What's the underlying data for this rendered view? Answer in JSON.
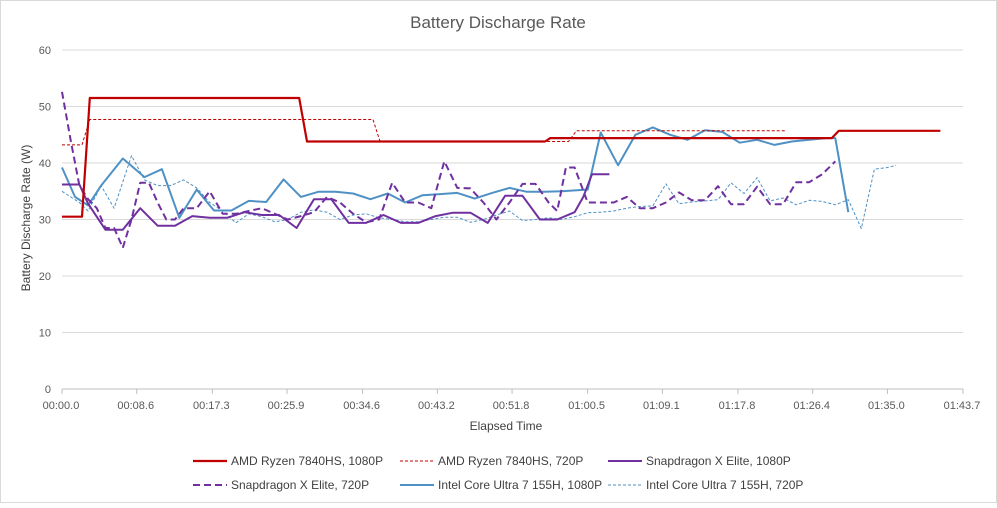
{
  "chart_data": {
    "type": "line",
    "title": "Battery Discharge Rate",
    "xlabel": "Elapsed Time",
    "ylabel": "Battery Discharge Rate (W)",
    "xlim": [
      0,
      101
    ],
    "ylim": [
      0,
      60
    ],
    "y_ticks": [
      0,
      10,
      20,
      30,
      40,
      50,
      60
    ],
    "x_ticks": [
      {
        "value": 0,
        "label": "00:00.0"
      },
      {
        "value": 8.6,
        "label": "00:08.6"
      },
      {
        "value": 17.3,
        "label": "00:17.3"
      },
      {
        "value": 25.9,
        "label": "00:25.9"
      },
      {
        "value": 34.6,
        "label": "00:34.6"
      },
      {
        "value": 43.2,
        "label": "00:43.2"
      },
      {
        "value": 51.8,
        "label": "00:51.8"
      },
      {
        "value": 60.5,
        "label": "01:00.5"
      },
      {
        "value": 69.1,
        "label": "01:09.1"
      },
      {
        "value": 77.8,
        "label": "01:17.8"
      },
      {
        "value": 86.4,
        "label": "01:26.4"
      },
      {
        "value": 95.0,
        "label": "01:35.0"
      },
      {
        "value": 103.7,
        "label": "01:43.7"
      }
    ],
    "grid": "horizontal",
    "legend_position": "bottom",
    "series": [
      {
        "name": "AMD Ryzen 7840HS, 1080P",
        "color": "#c00000",
        "dash": "solid",
        "width": 2.2,
        "points": [
          [
            0,
            30.5
          ],
          [
            2.3,
            30.5
          ],
          [
            3.2,
            51.5
          ],
          [
            27.3,
            51.5
          ],
          [
            28.2,
            43.8
          ],
          [
            55.6,
            43.8
          ],
          [
            56.2,
            44.4
          ],
          [
            88.6,
            44.4
          ],
          [
            89.4,
            45.7
          ],
          [
            101.1,
            45.7
          ]
        ]
      },
      {
        "name": "AMD Ryzen 7840HS, 720P",
        "color": "#c00000",
        "dash": "short",
        "width": 1,
        "points": [
          [
            0,
            43.2
          ],
          [
            2.3,
            43.2
          ],
          [
            3.2,
            47.7
          ],
          [
            35.8,
            47.7
          ],
          [
            36.6,
            43.8
          ],
          [
            58.3,
            43.8
          ],
          [
            59.2,
            45.7
          ],
          [
            83.3,
            45.7
          ]
        ]
      },
      {
        "name": "Snapdragon X Elite, 1080P",
        "color": "#7030a0",
        "dash": "solid",
        "width": 2,
        "points": [
          [
            0,
            36.2
          ],
          [
            2.0,
            36.2
          ],
          [
            3.0,
            32.8
          ],
          [
            5.0,
            28.2
          ],
          [
            7.0,
            28.2
          ],
          [
            9.0,
            32.0
          ],
          [
            11.0,
            28.9
          ],
          [
            13.0,
            28.9
          ],
          [
            15.0,
            30.6
          ],
          [
            17.0,
            30.3
          ],
          [
            19.0,
            30.3
          ],
          [
            21.0,
            31.3
          ],
          [
            23.0,
            30.8
          ],
          [
            25.0,
            30.8
          ],
          [
            27.0,
            28.5
          ],
          [
            29.0,
            33.6
          ],
          [
            31.0,
            33.6
          ],
          [
            33.0,
            29.4
          ],
          [
            35.0,
            29.4
          ],
          [
            37.0,
            30.8
          ],
          [
            39.0,
            29.4
          ],
          [
            41.0,
            29.4
          ],
          [
            43.0,
            30.6
          ],
          [
            45.0,
            31.2
          ],
          [
            47.0,
            31.2
          ],
          [
            49.0,
            29.4
          ],
          [
            51.0,
            34.2
          ],
          [
            53.0,
            34.2
          ],
          [
            55.0,
            30.0
          ],
          [
            57.0,
            30.0
          ],
          [
            59.0,
            31.3
          ],
          [
            60.0,
            34.0
          ],
          [
            61.0,
            38.0
          ],
          [
            63.0,
            38.0
          ]
        ]
      },
      {
        "name": "Snapdragon X Elite, 720P",
        "color": "#7030a0",
        "dash": "long",
        "width": 2,
        "points": [
          [
            0,
            52.6
          ],
          [
            1.0,
            44.0
          ],
          [
            2.0,
            36.0
          ],
          [
            3.0,
            33.6
          ],
          [
            4.0,
            32.0
          ],
          [
            5.0,
            28.5
          ],
          [
            6.0,
            28.5
          ],
          [
            7.0,
            25.0
          ],
          [
            8.0,
            30.0
          ],
          [
            9.0,
            36.5
          ],
          [
            10.0,
            36.5
          ],
          [
            11.0,
            33.0
          ],
          [
            12.0,
            30.0
          ],
          [
            13.0,
            30.0
          ],
          [
            14.0,
            32.0
          ],
          [
            15.5,
            32.0
          ],
          [
            17.0,
            35.0
          ],
          [
            18.5,
            31.0
          ],
          [
            20.0,
            31.0
          ],
          [
            21.5,
            31.5
          ],
          [
            23.0,
            32.0
          ],
          [
            24.5,
            31.0
          ],
          [
            26.0,
            30.0
          ],
          [
            27.5,
            30.6
          ],
          [
            29.0,
            31.3
          ],
          [
            30.5,
            34.0
          ],
          [
            32.0,
            33.0
          ],
          [
            33.5,
            31.0
          ],
          [
            35.0,
            29.5
          ],
          [
            36.5,
            30.0
          ],
          [
            38.0,
            36.5
          ],
          [
            39.5,
            33.0
          ],
          [
            41.0,
            33.0
          ],
          [
            42.5,
            32.0
          ],
          [
            44.0,
            40.3
          ],
          [
            45.5,
            35.6
          ],
          [
            47.0,
            35.5
          ],
          [
            48.5,
            33.0
          ],
          [
            50.0,
            30.0
          ],
          [
            51.5,
            33.0
          ],
          [
            53.0,
            36.3
          ],
          [
            54.5,
            36.3
          ],
          [
            56.0,
            33.0
          ],
          [
            57.0,
            31.5
          ],
          [
            58.0,
            39.2
          ],
          [
            59.0,
            39.2
          ],
          [
            60.5,
            33.0
          ],
          [
            62.0,
            33.0
          ],
          [
            63.5,
            33.0
          ],
          [
            65.0,
            34.0
          ],
          [
            66.5,
            32.0
          ],
          [
            68.0,
            32.0
          ],
          [
            69.5,
            33.0
          ],
          [
            71.0,
            34.8
          ],
          [
            72.5,
            33.4
          ],
          [
            74.0,
            33.4
          ],
          [
            75.5,
            35.9
          ],
          [
            77.0,
            32.7
          ],
          [
            78.5,
            32.7
          ],
          [
            80.0,
            35.8
          ],
          [
            81.5,
            32.7
          ],
          [
            83.0,
            32.7
          ],
          [
            84.5,
            36.6
          ],
          [
            86.0,
            36.6
          ],
          [
            87.5,
            38.0
          ],
          [
            89.0,
            40.3
          ]
        ]
      },
      {
        "name": "Intel Core Ultra 7 155H, 1080P",
        "color": "#4f91c4",
        "dash": "solid",
        "width": 2,
        "points": [
          [
            0,
            39.2
          ],
          [
            1.5,
            34.0
          ],
          [
            3.0,
            32.5
          ],
          [
            4.5,
            36.0
          ],
          [
            7.0,
            40.8
          ],
          [
            9.5,
            37.5
          ],
          [
            11.5,
            38.9
          ],
          [
            13.5,
            30.3
          ],
          [
            15.5,
            35.3
          ],
          [
            17.5,
            31.6
          ],
          [
            19.5,
            31.6
          ],
          [
            21.5,
            33.3
          ],
          [
            23.5,
            33.1
          ],
          [
            25.5,
            37.1
          ],
          [
            27.5,
            34.0
          ],
          [
            29.5,
            34.9
          ],
          [
            31.5,
            34.9
          ],
          [
            33.5,
            34.6
          ],
          [
            35.5,
            33.6
          ],
          [
            37.5,
            34.6
          ],
          [
            39.5,
            33.0
          ],
          [
            41.5,
            34.3
          ],
          [
            43.5,
            34.5
          ],
          [
            45.5,
            34.7
          ],
          [
            47.5,
            33.7
          ],
          [
            49.5,
            34.7
          ],
          [
            51.5,
            35.6
          ],
          [
            53.5,
            34.9
          ],
          [
            55.5,
            34.9
          ],
          [
            57.5,
            35.0
          ],
          [
            59.5,
            35.2
          ],
          [
            60.5,
            35.3
          ],
          [
            62.0,
            45.4
          ],
          [
            64.0,
            39.6
          ],
          [
            66.0,
            45.0
          ],
          [
            68.0,
            46.3
          ],
          [
            70.0,
            45.0
          ],
          [
            72.0,
            44.1
          ],
          [
            74.0,
            45.8
          ],
          [
            76.0,
            45.5
          ],
          [
            78.0,
            43.6
          ],
          [
            80.0,
            44.1
          ],
          [
            82.0,
            43.2
          ],
          [
            84.0,
            43.8
          ],
          [
            86.0,
            44.1
          ],
          [
            88.0,
            44.4
          ],
          [
            89.0,
            44.4
          ],
          [
            90.5,
            31.3
          ]
        ]
      },
      {
        "name": "Intel Core Ultra 7 155H, 720P",
        "color": "#4f91c4",
        "dash": "short",
        "width": 1,
        "points": [
          [
            0,
            35.0
          ],
          [
            2.0,
            33.0
          ],
          [
            3.0,
            31.5
          ],
          [
            4.5,
            36.0
          ],
          [
            6.0,
            32.0
          ],
          [
            8.0,
            41.3
          ],
          [
            9.5,
            37.0
          ],
          [
            11.0,
            36.0
          ],
          [
            12.5,
            36.0
          ],
          [
            14.0,
            37.0
          ],
          [
            15.5,
            35.6
          ],
          [
            17.0,
            33.0
          ],
          [
            18.5,
            31.5
          ],
          [
            20.0,
            29.4
          ],
          [
            21.5,
            31.0
          ],
          [
            23.0,
            30.5
          ],
          [
            24.5,
            29.6
          ],
          [
            26.0,
            30.0
          ],
          [
            27.5,
            31.3
          ],
          [
            29.0,
            31.7
          ],
          [
            30.5,
            31.3
          ],
          [
            32.0,
            30.0
          ],
          [
            33.5,
            30.8
          ],
          [
            35.0,
            31.0
          ],
          [
            36.5,
            30.3
          ],
          [
            38.0,
            30.0
          ],
          [
            39.5,
            29.6
          ],
          [
            41.0,
            29.6
          ],
          [
            42.5,
            30.0
          ],
          [
            44.0,
            30.4
          ],
          [
            45.5,
            30.4
          ],
          [
            47.0,
            29.5
          ],
          [
            48.5,
            30.0
          ],
          [
            50.0,
            30.8
          ],
          [
            51.5,
            31.5
          ],
          [
            53.0,
            29.8
          ],
          [
            54.5,
            30.0
          ],
          [
            56.0,
            30.3
          ],
          [
            57.5,
            30.0
          ],
          [
            59.0,
            30.5
          ],
          [
            60.5,
            31.2
          ],
          [
            62.0,
            31.3
          ],
          [
            63.5,
            31.5
          ],
          [
            65.0,
            32.0
          ],
          [
            66.5,
            32.3
          ],
          [
            68.0,
            32.4
          ],
          [
            69.5,
            36.3
          ],
          [
            71.0,
            32.8
          ],
          [
            72.5,
            33.1
          ],
          [
            74.0,
            33.3
          ],
          [
            75.5,
            33.5
          ],
          [
            77.0,
            36.5
          ],
          [
            78.5,
            34.6
          ],
          [
            80.0,
            37.4
          ],
          [
            81.5,
            33.3
          ],
          [
            83.0,
            33.8
          ],
          [
            84.5,
            32.6
          ],
          [
            86.0,
            33.4
          ],
          [
            87.5,
            33.2
          ],
          [
            89.0,
            32.6
          ],
          [
            90.5,
            33.5
          ],
          [
            92.0,
            28.4
          ],
          [
            93.5,
            38.9
          ],
          [
            95.0,
            39.2
          ],
          [
            96.0,
            39.6
          ]
        ]
      }
    ]
  }
}
